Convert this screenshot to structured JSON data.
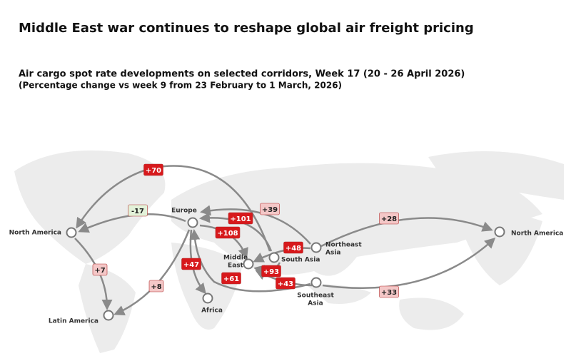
{
  "header": {
    "title": "Middle East war continues to reshape global air freight pricing",
    "subtitle": "Air cargo spot rate developments on selected corridors, Week 17 (20 - 26 April 2026)",
    "note": "(Percentage change vs week 9 from 23 February to 1 March, 2026)"
  },
  "nodes": [
    {
      "label": [
        "Europe"
      ]
    },
    {
      "label": [
        "North America"
      ]
    },
    {
      "label": [
        "Latin America"
      ]
    },
    {
      "label": [
        "Africa"
      ]
    },
    {
      "label": [
        "Middle",
        "East"
      ]
    },
    {
      "label": [
        "South Asia"
      ]
    },
    {
      "label": [
        "Northeast",
        "Asia"
      ]
    },
    {
      "label": [
        "Southeast",
        "Asia"
      ]
    },
    {
      "label": [
        "North America"
      ]
    }
  ],
  "flows": [
    {
      "label": "+70",
      "color": "#d7191c"
    },
    {
      "label": "-17",
      "color": "#e3f2d9"
    },
    {
      "label": "+7",
      "color": "#f4c7c7"
    },
    {
      "label": "+8",
      "color": "#f4c7c7"
    },
    {
      "label": "+47",
      "color": "#d7191c"
    },
    {
      "label": "+61",
      "color": "#d7191c"
    },
    {
      "label": "+101",
      "color": "#d7191c"
    },
    {
      "label": "+108",
      "color": "#d7191c"
    },
    {
      "label": "+39",
      "color": "#f4c7c7"
    },
    {
      "label": "+48",
      "color": "#d7191c"
    },
    {
      "label": "+93",
      "color": "#d7191c"
    },
    {
      "label": "+43",
      "color": "#d7191c"
    },
    {
      "label": "+28",
      "color": "#f4c7c7"
    },
    {
      "label": "+33",
      "color": "#f4c7c7"
    }
  ]
}
